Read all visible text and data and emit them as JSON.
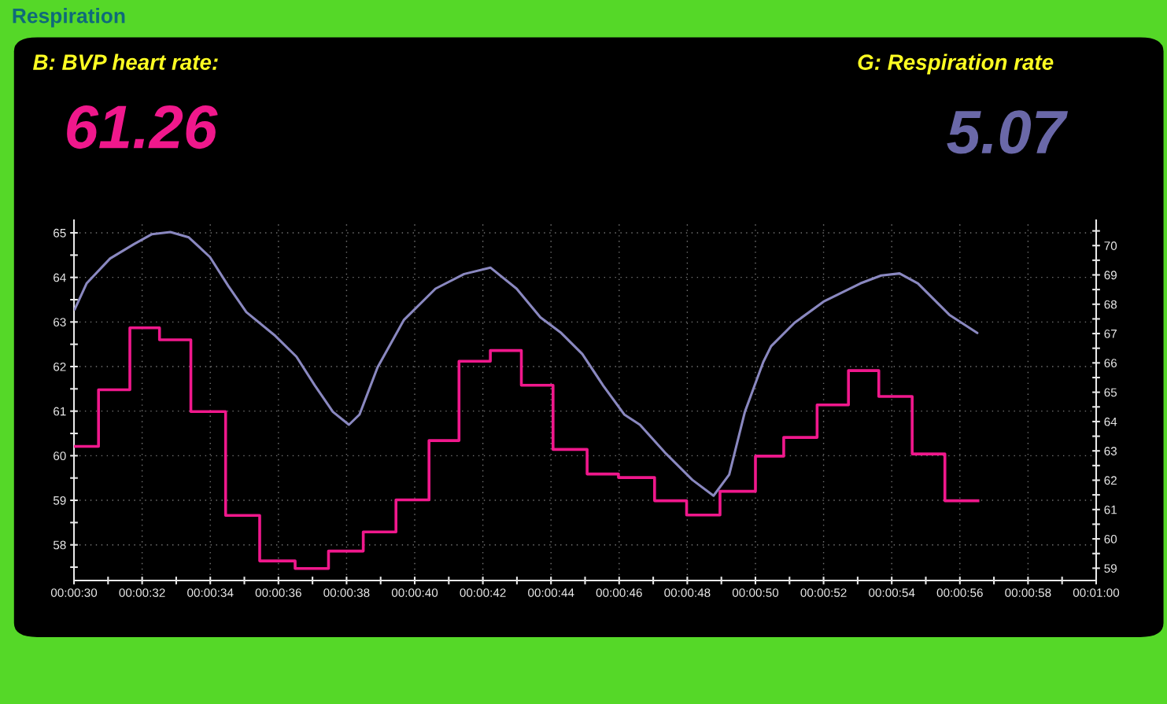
{
  "chart_data": {
    "type": "line",
    "title": "Respiration",
    "annotations": [
      "B: BVP heart rate:",
      "61.26",
      "G: Respiration rate",
      "5.07"
    ],
    "series": [
      {
        "type": "step",
        "color": "#f0188c",
        "x": [
          30,
          30.72,
          31.64,
          32.51,
          33.43,
          34.45,
          35.45,
          36.49,
          37.47,
          38.49,
          39.45,
          40.42,
          41.3,
          42.22,
          43.13,
          44.06,
          45.06,
          45.98,
          47.04,
          47.98,
          48.96,
          50.0,
          50.83,
          51.81,
          52.73,
          53.62,
          54.6,
          55.56,
          56.53
        ],
        "values": [
          60.21,
          61.48,
          62.87,
          62.6,
          60.99,
          58.66,
          57.64,
          57.47,
          57.86,
          58.29,
          59.01,
          60.34,
          62.12,
          62.36,
          61.58,
          60.14,
          59.59,
          59.51,
          58.99,
          58.67,
          59.2,
          59.99,
          60.41,
          61.14,
          61.91,
          61.33,
          60.04,
          58.99,
          58.99
        ]
      },
      {
        "axis": "y2",
        "color": "#8a88c0",
        "x": [
          30.02,
          30.37,
          31.06,
          31.76,
          32.29,
          32.83,
          33.37,
          33.99,
          34.53,
          35.06,
          35.91,
          36.53,
          37.07,
          37.6,
          38.07,
          38.38,
          38.91,
          39.68,
          40.61,
          41.45,
          42.22,
          42.99,
          43.69,
          44.3,
          44.92,
          45.53,
          46.15,
          46.61,
          47.38,
          48.15,
          48.77,
          49.23,
          49.69,
          50.23,
          50.46,
          51.15,
          52.0,
          53.08,
          53.69,
          54.23,
          54.77,
          55.69,
          56.51
        ],
        "values": [
          67.82,
          68.71,
          69.56,
          70.05,
          70.39,
          70.46,
          70.28,
          69.61,
          68.62,
          67.73,
          66.92,
          66.21,
          65.23,
          64.33,
          63.89,
          64.24,
          65.85,
          67.46,
          68.53,
          69.03,
          69.25,
          68.53,
          67.55,
          67.02,
          66.3,
          65.23,
          64.24,
          63.89,
          62.9,
          62.01,
          61.47,
          62.19,
          64.33,
          66.03,
          66.57,
          67.37,
          68.09,
          68.71,
          68.98,
          69.05,
          68.71,
          67.64,
          67.02
        ]
      }
    ],
    "xlim": [
      30,
      60
    ],
    "xticks": [
      {
        "value": 30,
        "label": "00:00:30"
      },
      {
        "value": 31,
        "label": null
      },
      {
        "value": 32,
        "label": "00:00:32"
      },
      {
        "value": 33,
        "label": null
      },
      {
        "value": 34,
        "label": "00:00:34"
      },
      {
        "value": 35,
        "label": null
      },
      {
        "value": 36,
        "label": "00:00:36"
      },
      {
        "value": 37,
        "label": null
      },
      {
        "value": 38,
        "label": "00:00:38"
      },
      {
        "value": 39,
        "label": null
      },
      {
        "value": 40,
        "label": "00:00:40"
      },
      {
        "value": 41,
        "label": null
      },
      {
        "value": 42,
        "label": "00:00:42"
      },
      {
        "value": 43,
        "label": null
      },
      {
        "value": 44,
        "label": "00:00:44"
      },
      {
        "value": 45,
        "label": null
      },
      {
        "value": 46,
        "label": "00:00:46"
      },
      {
        "value": 47,
        "label": null
      },
      {
        "value": 48,
        "label": "00:00:48"
      },
      {
        "value": 49,
        "label": null
      },
      {
        "value": 50,
        "label": "00:00:50"
      },
      {
        "value": 51,
        "label": null
      },
      {
        "value": 52,
        "label": "00:00:52"
      },
      {
        "value": 53,
        "label": null
      },
      {
        "value": 54,
        "label": "00:00:54"
      },
      {
        "value": 55,
        "label": null
      },
      {
        "value": 56,
        "label": "00:00:56"
      },
      {
        "value": 57,
        "label": null
      },
      {
        "value": 58,
        "label": "00:00:58"
      },
      {
        "value": 59,
        "label": null
      },
      {
        "value": 60,
        "label": "00:01:00"
      }
    ],
    "ylim": [
      57.2,
      65.28
    ],
    "yticks": [
      {
        "value": 57.5,
        "label": null
      },
      58,
      {
        "value": 58.5,
        "label": null
      },
      59,
      {
        "value": 59.5,
        "label": null
      },
      60,
      {
        "value": 60.5,
        "label": null
      },
      61,
      {
        "value": 61.5,
        "label": null
      },
      62,
      {
        "value": 62.5,
        "label": null
      },
      63,
      {
        "value": 63.5,
        "label": null
      },
      64,
      {
        "value": 64.5,
        "label": null
      },
      65
    ],
    "y2lim": [
      58.58,
      70.86
    ],
    "y2ticks": [
      59,
      {
        "value": 59.5,
        "label": null
      },
      60,
      {
        "value": 60.5,
        "label": null
      },
      61,
      {
        "value": 61.5,
        "label": null
      },
      62,
      {
        "value": 62.5,
        "label": null
      },
      63,
      {
        "value": 63.5,
        "label": null
      },
      64,
      {
        "value": 64.5,
        "label": null
      },
      65,
      {
        "value": 65.5,
        "label": null
      },
      66,
      {
        "value": 66.5,
        "label": null
      },
      67,
      {
        "value": 67.5,
        "label": null
      },
      68,
      {
        "value": 68.5,
        "label": null
      },
      69,
      {
        "value": 69.5,
        "label": null
      },
      70,
      {
        "value": 70.5,
        "label": null
      }
    ],
    "grid": true,
    "legend": false
  }
}
